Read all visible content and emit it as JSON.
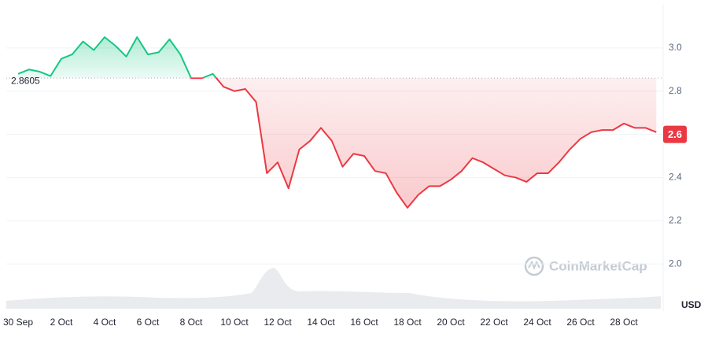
{
  "chart_data": {
    "type": "line",
    "categories": [
      "30 Sep",
      null,
      null,
      null,
      "2 Oct",
      null,
      null,
      null,
      "4 Oct",
      null,
      null,
      null,
      "6 Oct",
      null,
      null,
      null,
      "8 Oct",
      null,
      null,
      null,
      "10 Oct",
      null,
      null,
      null,
      "12 Oct",
      null,
      null,
      null,
      "14 Oct",
      null,
      null,
      null,
      "16 Oct",
      null,
      null,
      null,
      "18 Oct",
      null,
      null,
      null,
      "20 Oct",
      null,
      null,
      null,
      "22 Oct",
      null,
      null,
      null,
      "24 Oct",
      null,
      null,
      null,
      "26 Oct",
      null,
      null,
      null,
      "28 Oct",
      null,
      null,
      null
    ],
    "values": [
      2.88,
      2.9,
      2.89,
      2.87,
      2.95,
      2.97,
      3.03,
      2.99,
      3.05,
      3.01,
      2.96,
      3.05,
      2.97,
      2.98,
      3.04,
      2.97,
      2.86,
      2.86,
      2.88,
      2.82,
      2.8,
      2.81,
      2.75,
      2.42,
      2.47,
      2.35,
      2.53,
      2.57,
      2.63,
      2.57,
      2.45,
      2.51,
      2.5,
      2.43,
      2.42,
      2.33,
      2.26,
      2.32,
      2.36,
      2.36,
      2.39,
      2.43,
      2.49,
      2.47,
      2.44,
      2.41,
      2.4,
      2.38,
      2.42,
      2.42,
      2.47,
      2.53,
      2.58,
      2.61,
      2.62,
      2.62,
      2.65,
      2.63,
      2.63,
      2.61
    ],
    "baseline": 2.8605,
    "last_price": 2.6,
    "up_color": "#16c784",
    "down_color": "#ea3943",
    "ylim": [
      1.8,
      3.2
    ],
    "yticks": [
      {
        "value": 2.0,
        "label": "2.0"
      },
      {
        "value": 2.2,
        "label": "2.2"
      },
      {
        "value": 2.4,
        "label": "2.4"
      },
      {
        "value": 2.6,
        "label": "2.6"
      },
      {
        "value": 2.8,
        "label": "2.8"
      },
      {
        "value": 3.0,
        "label": "3.0"
      }
    ],
    "y_unit": "USD",
    "watermark": "CoinMarketCap",
    "grid": true
  }
}
